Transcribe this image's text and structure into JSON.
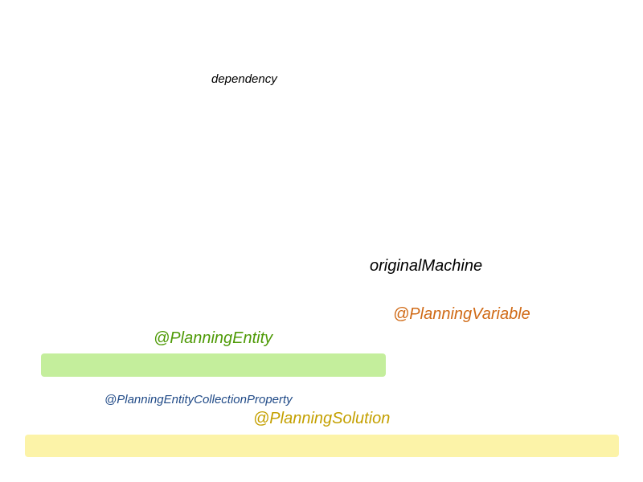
{
  "labels": {
    "dependency": "dependency",
    "original_machine": "originalMachine",
    "planning_variable": "@PlanningVariable",
    "planning_entity": "@PlanningEntity",
    "planning_entity_collection_property": "@PlanningEntityCollectionProperty",
    "planning_solution": "@PlanningSolution"
  },
  "colors": {
    "dependency": "#000000",
    "original_machine": "#000000",
    "planning_variable": "#d06a16",
    "planning_entity": "#4e9a06",
    "planning_entity_bar": "#c4ee9c",
    "planning_entity_collection_property": "#204a87",
    "planning_solution": "#c4a000",
    "planning_solution_bar": "#fcf3a8"
  }
}
